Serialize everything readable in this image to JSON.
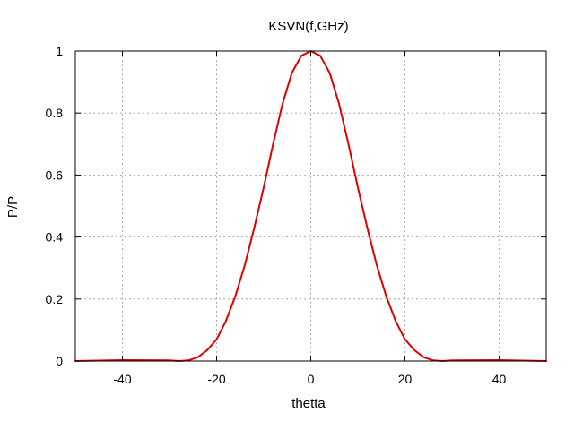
{
  "chart_data": {
    "type": "line",
    "title": "KSVN(f,GHz)",
    "xlabel": "thetta",
    "ylabel": "P/P",
    "xlim": [
      -50,
      50
    ],
    "ylim": [
      0,
      1
    ],
    "xticks": [
      -40,
      -20,
      0,
      20,
      40
    ],
    "yticks": [
      0,
      0.2,
      0.4,
      0.6,
      0.8,
      1
    ],
    "xtick_labels": [
      "-40",
      "-20",
      "0",
      "20",
      "40"
    ],
    "ytick_labels": [
      "0",
      "0.2",
      "0.4",
      "0.6",
      "0.8",
      "1"
    ],
    "grid": true,
    "legend": "none",
    "series": [
      {
        "color": "#e00000",
        "x": [
          -50,
          -40,
          -30,
          -28,
          -26,
          -24,
          -22,
          -20,
          -18,
          -16,
          -14,
          -12,
          -10,
          -8,
          -6,
          -4,
          -2,
          0,
          2,
          4,
          6,
          8,
          10,
          12,
          14,
          16,
          18,
          20,
          22,
          24,
          26,
          28,
          30,
          40,
          50
        ],
        "y": [
          0,
          0.003,
          0.002,
          0,
          0.002,
          0.012,
          0.035,
          0.07,
          0.13,
          0.21,
          0.31,
          0.43,
          0.56,
          0.7,
          0.83,
          0.93,
          0.985,
          1.0,
          0.985,
          0.93,
          0.83,
          0.7,
          0.56,
          0.43,
          0.31,
          0.21,
          0.13,
          0.07,
          0.035,
          0.012,
          0.002,
          0,
          0.002,
          0.003,
          0
        ]
      }
    ]
  }
}
